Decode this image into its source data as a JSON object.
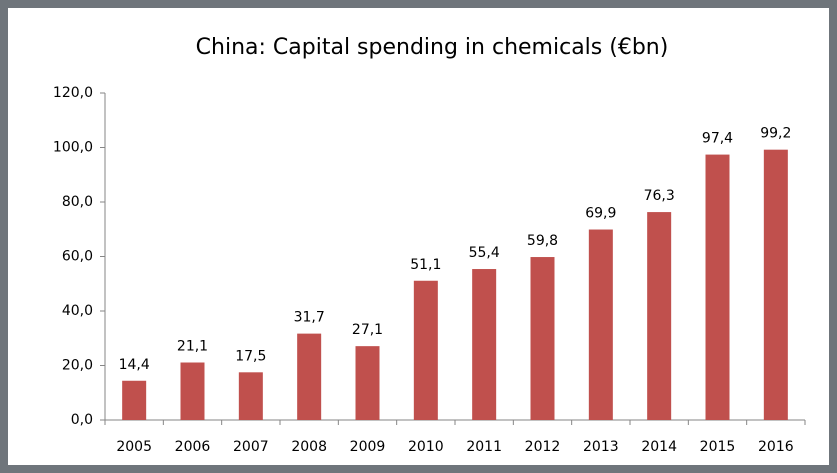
{
  "chart_data": {
    "type": "bar",
    "title": "China: Capital spending in chemicals (€bn)",
    "categories": [
      "2005",
      "2006",
      "2007",
      "2008",
      "2009",
      "2010",
      "2011",
      "2012",
      "2013",
      "2014",
      "2015",
      "2016"
    ],
    "values": [
      14.4,
      21.1,
      17.5,
      31.7,
      27.1,
      51.1,
      55.4,
      59.8,
      69.9,
      76.3,
      97.4,
      99.2
    ],
    "value_labels": [
      "14,4",
      "21,1",
      "17,5",
      "31,7",
      "27,1",
      "51,1",
      "55,4",
      "59,8",
      "69,9",
      "76,3",
      "97,4",
      "99,2"
    ],
    "color": "#c0504d",
    "ylim": [
      0,
      120
    ],
    "yticks": [
      {
        "value": 0,
        "label": "0,0"
      },
      {
        "value": 20,
        "label": "20,0"
      },
      {
        "value": 40,
        "label": "40,0"
      },
      {
        "value": 60,
        "label": "60,0"
      },
      {
        "value": 80,
        "label": "80,0"
      },
      {
        "value": 100,
        "label": "100,0"
      },
      {
        "value": 120,
        "label": "120,0"
      }
    ],
    "grid": false
  }
}
